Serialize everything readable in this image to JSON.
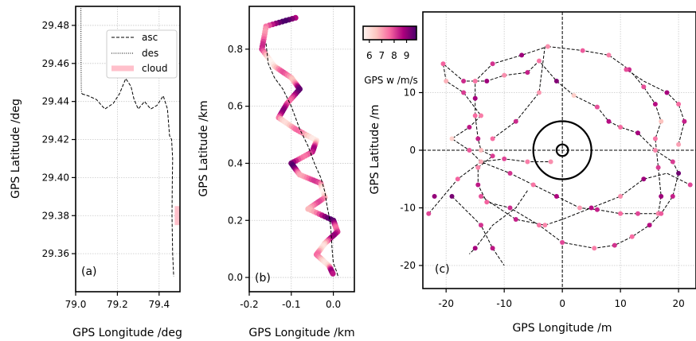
{
  "chart_data": [
    {
      "panel": "(a)",
      "type": "line",
      "xlabel": "GPS Longitude /deg",
      "ylabel": "GPS Latitude /deg",
      "xlim": [
        79.0,
        79.5
      ],
      "ylim": [
        29.34,
        29.49
      ],
      "xticks": [
        "79.0",
        "79.2",
        "79.4"
      ],
      "yticks": [
        "29.36",
        "29.38",
        "29.40",
        "29.42",
        "29.44",
        "29.46",
        "29.48"
      ],
      "grid": true,
      "legend": {
        "position": "upper-right",
        "entries": [
          "asc",
          "des",
          "cloud"
        ]
      },
      "series": [
        {
          "name": "asc",
          "style": "dashed",
          "color": "#000000",
          "points": [
            [
              79.03,
              29.444
            ],
            [
              79.06,
              29.443
            ],
            [
              79.1,
              29.441
            ],
            [
              79.14,
              29.436
            ],
            [
              79.18,
              29.439
            ],
            [
              79.21,
              29.444
            ],
            [
              79.24,
              29.452
            ],
            [
              79.265,
              29.448
            ],
            [
              79.28,
              29.441
            ],
            [
              79.3,
              29.436
            ],
            [
              79.33,
              29.44
            ],
            [
              79.36,
              29.436
            ],
            [
              79.39,
              29.438
            ],
            [
              79.42,
              29.443
            ],
            [
              79.44,
              29.436
            ],
            [
              79.45,
              29.422
            ],
            [
              79.46,
              29.42
            ],
            [
              79.465,
              29.41
            ],
            [
              79.463,
              29.395
            ],
            [
              79.462,
              29.38
            ],
            [
              79.465,
              29.36
            ],
            [
              79.47,
              29.348
            ]
          ]
        },
        {
          "name": "des",
          "style": "dotted",
          "color": "#000000",
          "points": [
            [
              79.025,
              29.489
            ],
            [
              79.026,
              29.46
            ],
            [
              79.027,
              29.446
            ],
            [
              79.03,
              29.444
            ]
          ]
        },
        {
          "name": "cloud",
          "style": "thick",
          "color": "#ffc0cb",
          "points": [
            [
              79.49,
              29.385
            ],
            [
              79.49,
              29.375
            ]
          ]
        }
      ]
    },
    {
      "panel": "(b)",
      "type": "scatter",
      "xlabel": "GPS Longitude /km",
      "ylabel": "GPS Latitude /km",
      "xlim": [
        -0.2,
        0.05
      ],
      "ylim": [
        -0.05,
        0.95
      ],
      "xticks": [
        "-0.2",
        "-0.1",
        "0.0"
      ],
      "yticks": [
        "0.0",
        "0.2",
        "0.4",
        "0.6",
        "0.8"
      ],
      "grid": true,
      "path": [
        [
          -0.16,
          0.82
        ],
        [
          -0.155,
          0.75
        ],
        [
          -0.14,
          0.7
        ],
        [
          -0.12,
          0.66
        ],
        [
          -0.1,
          0.6
        ],
        [
          -0.08,
          0.52
        ],
        [
          -0.06,
          0.46
        ],
        [
          -0.045,
          0.4
        ],
        [
          -0.03,
          0.35
        ],
        [
          -0.02,
          0.3
        ],
        [
          -0.015,
          0.25
        ],
        [
          -0.008,
          0.2
        ],
        [
          -0.005,
          0.15
        ],
        [
          -0.003,
          0.1
        ],
        [
          0.0,
          0.05
        ],
        [
          0.008,
          0.02
        ],
        [
          0.012,
          0.0
        ]
      ],
      "colored_track": [
        [
          -0.09,
          0.91
        ],
        [
          -0.16,
          0.88
        ],
        [
          -0.17,
          0.8
        ],
        [
          -0.14,
          0.74
        ],
        [
          -0.1,
          0.7
        ],
        [
          -0.08,
          0.66
        ],
        [
          -0.11,
          0.61
        ],
        [
          -0.13,
          0.56
        ],
        [
          -0.09,
          0.52
        ],
        [
          -0.04,
          0.48
        ],
        [
          -0.05,
          0.44
        ],
        [
          -0.1,
          0.4
        ],
        [
          -0.08,
          0.36
        ],
        [
          -0.03,
          0.33
        ],
        [
          -0.02,
          0.28
        ],
        [
          -0.06,
          0.24
        ],
        [
          0.0,
          0.2
        ],
        [
          0.01,
          0.16
        ],
        [
          -0.02,
          0.12
        ],
        [
          -0.04,
          0.08
        ],
        [
          -0.01,
          0.04
        ],
        [
          0.0,
          0.01
        ]
      ]
    },
    {
      "panel": "(c)",
      "type": "scatter",
      "xlabel": "GPS Longitude /m",
      "ylabel": "GPS Latitude /m",
      "xlim": [
        -24,
        23
      ],
      "ylim": [
        -24,
        24
      ],
      "xticks": [
        "-20",
        "-10",
        "0",
        "10",
        "20"
      ],
      "yticks": [
        "-20",
        "-10",
        "0",
        "10"
      ],
      "grid": true,
      "colorbar": {
        "label": "GPS w /m/s",
        "ticks": [
          "6",
          "7",
          "8",
          "9"
        ],
        "range": [
          5.5,
          9.8
        ]
      },
      "rings": [
        {
          "r": 1
        },
        {
          "r": 5
        }
      ],
      "path": [
        [
          -2.5,
          18
        ],
        [
          3.5,
          17.3
        ],
        [
          8,
          16.5
        ],
        [
          11.5,
          14
        ],
        [
          14,
          11
        ],
        [
          16,
          8
        ],
        [
          17,
          5
        ],
        [
          16,
          2
        ],
        [
          16.5,
          -3
        ],
        [
          17,
          -8
        ],
        [
          16.5,
          -11
        ],
        [
          13,
          -11
        ],
        [
          10,
          -11
        ],
        [
          6,
          -10.3
        ],
        [
          3,
          -10
        ],
        [
          -1,
          -8
        ],
        [
          -5,
          -6
        ],
        [
          -9,
          -4
        ],
        [
          -14,
          -2
        ],
        [
          -16,
          0
        ],
        [
          -19,
          2
        ],
        [
          -16,
          4
        ],
        [
          -14,
          6
        ],
        [
          -17,
          10
        ],
        [
          -20,
          12
        ],
        [
          -20.5,
          15
        ],
        [
          -17,
          12
        ],
        [
          -13,
          12
        ],
        [
          -10,
          13
        ],
        [
          -6,
          13.5
        ],
        [
          -4,
          15.5
        ],
        [
          -1,
          12
        ],
        [
          2,
          9.5
        ],
        [
          6,
          7.5
        ],
        [
          8,
          5
        ],
        [
          10,
          4
        ],
        [
          13,
          3
        ],
        [
          16,
          0
        ],
        [
          19,
          -2
        ],
        [
          20,
          -4
        ],
        [
          19,
          -8
        ],
        [
          17,
          -11
        ],
        [
          15,
          -13
        ],
        [
          12,
          -15
        ],
        [
          9,
          -16.5
        ],
        [
          5.5,
          -17
        ],
        [
          0,
          -16
        ],
        [
          -4,
          -13
        ],
        [
          -9,
          -10
        ],
        [
          -13,
          -9
        ],
        [
          -14.5,
          -6
        ],
        [
          -14.5,
          -3
        ],
        [
          -12,
          -1
        ],
        [
          -14,
          0
        ],
        [
          -14.5,
          2
        ],
        [
          -15,
          6
        ],
        [
          -15,
          9
        ],
        [
          -15,
          12
        ],
        [
          -12,
          15
        ],
        [
          -7,
          16.5
        ],
        [
          -2.5,
          18
        ]
      ],
      "extra_segments": [
        [
          [
            -23,
            -11
          ],
          [
            -18,
            -5
          ],
          [
            -14,
            -2
          ],
          [
            -10,
            -1.5
          ],
          [
            -6,
            -2
          ],
          [
            -2,
            -2
          ]
        ],
        [
          [
            -14,
            -8
          ],
          [
            -8,
            -12
          ],
          [
            -3,
            -13
          ],
          [
            0,
            -12
          ],
          [
            5,
            -10
          ],
          [
            10,
            -8
          ],
          [
            14,
            -5
          ],
          [
            18,
            -4
          ],
          [
            22,
            -6
          ]
        ],
        [
          [
            -12,
            2
          ],
          [
            -8,
            5
          ],
          [
            -4,
            10
          ],
          [
            -3,
            18
          ]
        ],
        [
          [
            -19,
            -8
          ],
          [
            -14,
            -13
          ],
          [
            -12,
            -17
          ],
          [
            -10,
            -20
          ]
        ],
        [
          [
            -6,
            -7
          ],
          [
            -8,
            -10
          ],
          [
            -12,
            -13
          ],
          [
            -15,
            -17
          ],
          [
            -16,
            -18
          ]
        ],
        [
          [
            20,
            1
          ],
          [
            21,
            5
          ],
          [
            20,
            8
          ],
          [
            18,
            10
          ],
          [
            14,
            12
          ],
          [
            11,
            14
          ]
        ]
      ],
      "markers": [
        [
          -2.5,
          18,
          7.2
        ],
        [
          3.5,
          17.3,
          7.8
        ],
        [
          8,
          16.5,
          7.4
        ],
        [
          11.5,
          14,
          8.3
        ],
        [
          14,
          11,
          7.9
        ],
        [
          16,
          8,
          8.6
        ],
        [
          17,
          5,
          6.6
        ],
        [
          16,
          2,
          7.5
        ],
        [
          16.5,
          -3,
          8.1
        ],
        [
          17,
          -8,
          8.9
        ],
        [
          16.5,
          -11,
          7.3
        ],
        [
          13,
          -11,
          8.0
        ],
        [
          10,
          -11,
          7.6
        ],
        [
          6,
          -10.3,
          8.4
        ],
        [
          3,
          -10,
          7.1
        ],
        [
          -1,
          -8,
          8.7
        ],
        [
          -5,
          -6,
          7.5
        ],
        [
          -9,
          -4,
          8.2
        ],
        [
          -14,
          -2,
          6.9
        ],
        [
          -16,
          0,
          7.8
        ],
        [
          -19,
          2,
          6.3
        ],
        [
          -16,
          4,
          8.5
        ],
        [
          -14,
          6,
          7.4
        ],
        [
          -17,
          10,
          8.1
        ],
        [
          -20,
          12,
          6.8
        ],
        [
          -20.5,
          15,
          7.7
        ],
        [
          -17,
          12,
          8.3
        ],
        [
          -13,
          12,
          8.9
        ],
        [
          -10,
          13,
          7.2
        ],
        [
          -6,
          13.5,
          8.4
        ],
        [
          -4,
          15.5,
          7.5
        ],
        [
          -1,
          12,
          9.2
        ],
        [
          2,
          9.5,
          6.4
        ],
        [
          6,
          7.5,
          7.9
        ],
        [
          8,
          5,
          8.6
        ],
        [
          10,
          4,
          7.6
        ],
        [
          13,
          3,
          8.8
        ],
        [
          16,
          0,
          7.3
        ],
        [
          19,
          -2,
          8.1
        ],
        [
          20,
          -4,
          9.4
        ],
        [
          19,
          -8,
          8.4
        ],
        [
          17,
          -11,
          7.8
        ],
        [
          15,
          -13,
          8.6
        ],
        [
          12,
          -15,
          7.6
        ],
        [
          9,
          -16.5,
          8.2
        ],
        [
          5.5,
          -17,
          7.4
        ],
        [
          0,
          -16,
          8.0
        ],
        [
          -4,
          -13,
          7.5
        ],
        [
          -9,
          -10,
          8.3
        ],
        [
          -13,
          -9,
          7.7
        ],
        [
          -14.5,
          -6,
          8.5
        ],
        [
          -14.5,
          -3,
          7.3
        ],
        [
          -12,
          -1,
          8.1
        ],
        [
          -14,
          0,
          6.7
        ],
        [
          -14.5,
          2,
          8.4
        ],
        [
          -15,
          6,
          7.6
        ],
        [
          -15,
          9,
          8.8
        ],
        [
          -15,
          12,
          7.5
        ],
        [
          -12,
          15,
          8.2
        ],
        [
          -7,
          16.5,
          8.9
        ],
        [
          -23,
          -11,
          8.0
        ],
        [
          -19,
          -8,
          9.3
        ],
        [
          -14,
          -8,
          7.9
        ],
        [
          -8,
          -12,
          8.4
        ],
        [
          -3,
          -13,
          7.3
        ],
        [
          5,
          -10,
          8.6
        ],
        [
          10,
          -8,
          7.2
        ],
        [
          14,
          -5,
          8.9
        ],
        [
          22,
          -6,
          8.0
        ],
        [
          -12,
          2,
          7.6
        ],
        [
          -8,
          5,
          8.3
        ],
        [
          -4,
          10,
          7.1
        ],
        [
          -14,
          -13,
          8.2
        ],
        [
          -12,
          -17,
          8.5
        ],
        [
          -15,
          -17,
          8.8
        ],
        [
          20,
          1,
          7.0
        ],
        [
          21,
          5,
          8.4
        ],
        [
          20,
          8,
          7.6
        ],
        [
          18,
          10,
          8.8
        ],
        [
          11,
          14,
          7.9
        ],
        [
          -10,
          -1.5,
          8.0
        ],
        [
          -6,
          -2,
          7.4
        ],
        [
          -2,
          -2,
          7.2
        ],
        [
          -18,
          -5,
          7.7
        ],
        [
          -22,
          -8,
          9.0
        ]
      ]
    }
  ]
}
